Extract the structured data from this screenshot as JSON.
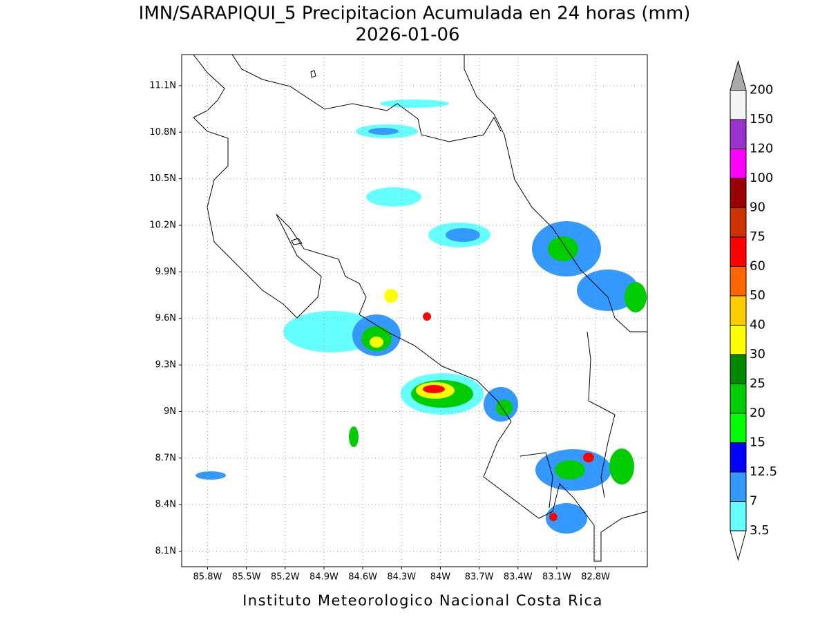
{
  "title": "IMN/SARAPIQUI_5 Precipitacion Acumulada en 24 horas (mm)",
  "subtitle": "2026-01-06",
  "footer": "Instituto Meteorologico Nacional Costa Rica",
  "map": {
    "lonlim": [
      -86.0,
      -82.4
    ],
    "latlim": [
      8.0,
      11.3
    ],
    "lat_ticks": [
      {
        "value": 8.1,
        "label": "8.1N"
      },
      {
        "value": 8.4,
        "label": "8.4N"
      },
      {
        "value": 8.7,
        "label": "8.7N"
      },
      {
        "value": 9.0,
        "label": "9N"
      },
      {
        "value": 9.3,
        "label": "9.3N"
      },
      {
        "value": 9.6,
        "label": "9.6N"
      },
      {
        "value": 9.9,
        "label": "9.9N"
      },
      {
        "value": 10.2,
        "label": "10.2N"
      },
      {
        "value": 10.5,
        "label": "10.5N"
      },
      {
        "value": 10.8,
        "label": "10.8N"
      },
      {
        "value": 11.1,
        "label": "11.1N"
      }
    ],
    "lon_ticks": [
      {
        "value": -85.8,
        "label": "85.8W"
      },
      {
        "value": -85.5,
        "label": "85.5W"
      },
      {
        "value": -85.2,
        "label": "85.2W"
      },
      {
        "value": -84.9,
        "label": "84.9W"
      },
      {
        "value": -84.6,
        "label": "84.6W"
      },
      {
        "value": -84.3,
        "label": "84.3W"
      },
      {
        "value": -84.0,
        "label": "84W"
      },
      {
        "value": -83.7,
        "label": "83.7W"
      },
      {
        "value": -83.4,
        "label": "83.4W"
      },
      {
        "value": -83.1,
        "label": "83.1W"
      },
      {
        "value": -82.8,
        "label": "82.8W"
      }
    ]
  },
  "colorbar": {
    "levels": [
      3.5,
      7,
      12.5,
      15,
      20,
      25,
      30,
      40,
      50,
      60,
      75,
      90,
      100,
      120,
      150,
      200
    ],
    "colors": [
      "#66ffff",
      "#3399ff",
      "#0000ff",
      "#00ff00",
      "#00cc00",
      "#008800",
      "#ffff00",
      "#ffcc00",
      "#ff6600",
      "#ff0000",
      "#cc3300",
      "#990000",
      "#ff00ff",
      "#9933cc",
      "#f5f5f5"
    ],
    "under_color": "#ffffff",
    "over_color": "#aaaaaa"
  }
}
